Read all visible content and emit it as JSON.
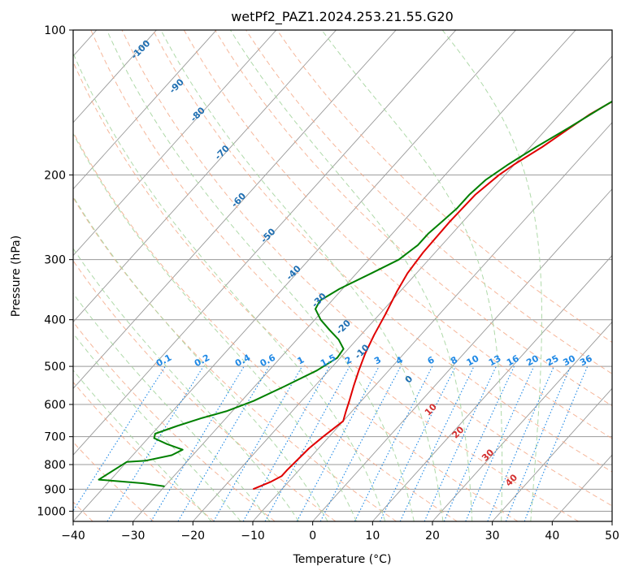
{
  "chart_data": {
    "type": "line",
    "subtype": "skew-T log-P diagram",
    "title": "wetPf2_PAZ1.2024.253.21.55.G20",
    "xlabel": "Temperature (°C)",
    "ylabel": "Pressure (hPa)",
    "xlim": [
      -40,
      50
    ],
    "ylim": [
      1050,
      100
    ],
    "yscale": "log",
    "x_ticks": [
      -40,
      -30,
      -20,
      -10,
      0,
      10,
      20,
      30,
      40,
      50
    ],
    "y_ticks": [
      100,
      200,
      300,
      400,
      500,
      600,
      700,
      800,
      900,
      1000
    ],
    "grid": true,
    "series": [
      {
        "role": "temperature",
        "color": "#e00000",
        "points": [
          [
            -14.8,
            900
          ],
          [
            -13.0,
            870
          ],
          [
            -12.0,
            845
          ],
          [
            -12.0,
            820
          ],
          [
            -11.8,
            780
          ],
          [
            -11.6,
            740
          ],
          [
            -11.0,
            700
          ],
          [
            -10.0,
            650
          ],
          [
            -11.0,
            620
          ],
          [
            -12.0,
            590
          ],
          [
            -13.5,
            550
          ],
          [
            -15.0,
            510
          ],
          [
            -16.5,
            470
          ],
          [
            -17.8,
            430
          ],
          [
            -19.0,
            390
          ],
          [
            -20.5,
            350
          ],
          [
            -21.5,
            320
          ],
          [
            -22.0,
            290
          ],
          [
            -22.2,
            250
          ],
          [
            -22.0,
            220
          ],
          [
            -21.0,
            200
          ],
          [
            -20.0,
            190
          ],
          [
            -18.0,
            175
          ],
          [
            -16.5,
            162
          ],
          [
            -15.0,
            150
          ],
          [
            -13.0,
            140
          ],
          [
            -10.0,
            130
          ],
          [
            -7.0,
            120
          ],
          [
            -4.0,
            112
          ],
          [
            -2.0,
            106
          ],
          [
            -0.5,
            100
          ]
        ]
      },
      {
        "role": "dewpoint",
        "color": "#008000",
        "points": [
          [
            -30.0,
            888
          ],
          [
            -34.0,
            875
          ],
          [
            -42.0,
            860
          ],
          [
            -40.0,
            790
          ],
          [
            -37.0,
            785
          ],
          [
            -33.5,
            765
          ],
          [
            -32.5,
            745
          ],
          [
            -36.0,
            725
          ],
          [
            -39.0,
            705
          ],
          [
            -39.5,
            690
          ],
          [
            -37.0,
            665
          ],
          [
            -34.0,
            640
          ],
          [
            -31.0,
            620
          ],
          [
            -28.0,
            590
          ],
          [
            -25.0,
            550
          ],
          [
            -22.0,
            510
          ],
          [
            -20.5,
            480
          ],
          [
            -20.8,
            460
          ],
          [
            -23.0,
            440
          ],
          [
            -26.0,
            420
          ],
          [
            -29.0,
            400
          ],
          [
            -31.5,
            380
          ],
          [
            -32.0,
            365
          ],
          [
            -30.5,
            345
          ],
          [
            -27.5,
            320
          ],
          [
            -25.0,
            300
          ],
          [
            -24.0,
            280
          ],
          [
            -24.0,
            265
          ],
          [
            -23.5,
            250
          ],
          [
            -23.0,
            235
          ],
          [
            -23.0,
            220
          ],
          [
            -22.5,
            205
          ],
          [
            -21.0,
            190
          ],
          [
            -19.0,
            175
          ],
          [
            -16.5,
            160
          ],
          [
            -14.0,
            145
          ],
          [
            -11.0,
            130
          ],
          [
            -8.5,
            118
          ],
          [
            -6.0,
            112
          ],
          [
            -4.5,
            106
          ],
          [
            -3.0,
            100
          ]
        ]
      }
    ],
    "dry_adiabats_C": [
      -100,
      -90,
      -80,
      -70,
      -60,
      -50,
      -40,
      -30,
      -20,
      -10,
      0,
      10,
      20,
      30,
      40,
      50,
      60,
      70,
      80,
      90,
      100
    ],
    "moist_adiabats_C": [
      -20,
      -15,
      -10,
      -5,
      0,
      5,
      10,
      15,
      20,
      25,
      30,
      35
    ],
    "mixing_ratio_lines": [
      0.1,
      0.2,
      0.4,
      0.6,
      1,
      1.5,
      2,
      3,
      4,
      6,
      8,
      10,
      13,
      16,
      20,
      25,
      30,
      36
    ],
    "mixing_ratio_labels": [
      "0.1",
      "0.2",
      "0.4",
      "0.6",
      "1",
      "1.5",
      "2",
      "3",
      "4",
      "6",
      "8",
      "10",
      "13",
      "16",
      "20",
      "25",
      "30",
      "36"
    ],
    "wet_bulb_labels": [
      {
        "text": "-100",
        "T": -99.6,
        "p": 110
      },
      {
        "text": "-90",
        "T": -88.1,
        "p": 131
      },
      {
        "text": "-80",
        "T": -80.3,
        "p": 150
      },
      {
        "text": "-70",
        "T": -70.5,
        "p": 180
      },
      {
        "text": "-60",
        "T": -60.6,
        "p": 226
      },
      {
        "text": "-50",
        "T": -50.3,
        "p": 268
      },
      {
        "text": "-40",
        "T": -40.5,
        "p": 320
      },
      {
        "text": "-30",
        "T": -32.1,
        "p": 365
      },
      {
        "text": "-20",
        "T": -24.0,
        "p": 415
      },
      {
        "text": "-10",
        "T": -17.2,
        "p": 467
      },
      {
        "text": "0",
        "T": -5.2,
        "p": 533
      }
    ],
    "dry_adiabat_labels": [
      {
        "text": "10",
        "T": 3.0,
        "p": 616
      },
      {
        "text": "20",
        "T": 11.0,
        "p": 687
      },
      {
        "text": "30",
        "T": 19.4,
        "p": 766
      },
      {
        "text": "40",
        "T": 27.1,
        "p": 864
      }
    ],
    "colors": {
      "temperature": "#e00000",
      "dewpoint": "#008000",
      "isotherm": "#999999",
      "dry_adiabat": "#f4a582",
      "moist_adiabat": "#a6d5a0",
      "mixing_ratio": "#1e88e5",
      "wet_label": "#1f6fb2",
      "dry_label": "#d32f2f"
    }
  }
}
